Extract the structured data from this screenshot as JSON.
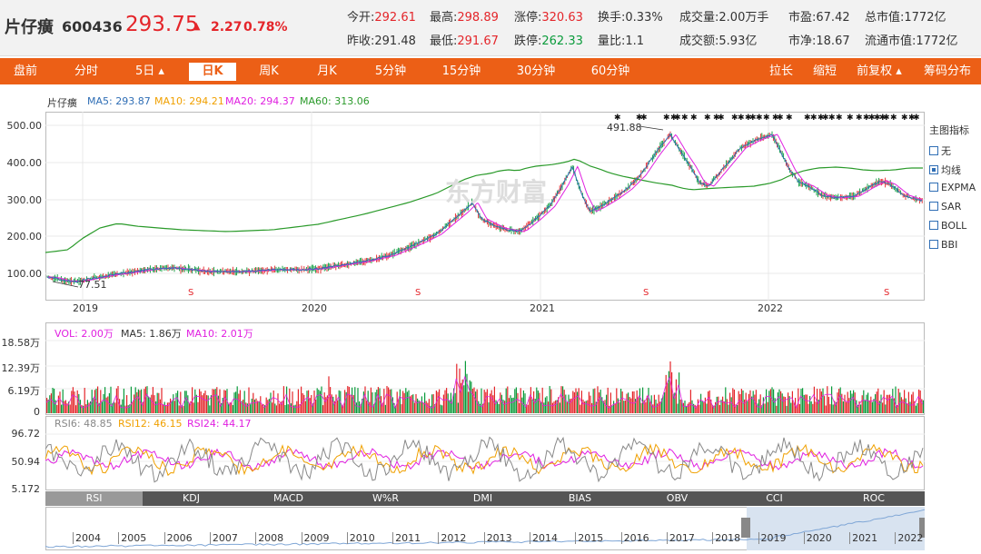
{
  "stock": {
    "name": "片仔癀",
    "code": "600436",
    "price": "293.75",
    "arrow": "▲",
    "change": "2.27",
    "pct": "0.78%"
  },
  "stats": {
    "open_l": "今开:",
    "open": "292.61",
    "high_l": "最高:",
    "high": "298.89",
    "limit_up_l": "涨停:",
    "limit_up": "320.63",
    "turnover_l": "换手:",
    "turnover": "0.33%",
    "vol_l": "成交量:",
    "vol": "2.00万手",
    "pe_l": "市盈:",
    "pe": "67.42",
    "mcap_l": "总市值:",
    "mcap": "1772亿",
    "prev_l": "昨收:",
    "prev": "291.48",
    "low_l": "最低:",
    "low": "291.67",
    "limit_dn_l": "跌停:",
    "limit_dn": "262.33",
    "vratio_l": "量比:",
    "vratio": "1.1",
    "amount_l": "成交额:",
    "amount": "5.93亿",
    "pb_l": "市净:",
    "pb": "18.67",
    "fmcap_l": "流通市值:",
    "fmcap": "1772亿"
  },
  "tabs": [
    "盘前",
    "分时",
    "5日 ▴",
    "日K",
    "周K",
    "月K",
    "5分钟",
    "15分钟",
    "30分钟",
    "60分钟"
  ],
  "active_tab": "日K",
  "tools": [
    "拉长",
    "缩短",
    "前复权 ▴",
    "筹码分布"
  ],
  "ma": {
    "title": "片仔癀",
    "ma5": "MA5: 293.87",
    "ma10": "MA10: 294.21",
    "ma20": "MA20: 294.37",
    "ma60": "MA60: 313.06"
  },
  "price_axis": [
    "500.00",
    "400.00",
    "300.00",
    "200.00",
    "100.00"
  ],
  "year_labels": [
    "2019",
    "2020",
    "2021",
    "2022"
  ],
  "annot": {
    "high": "491.88",
    "low": "77.51"
  },
  "watermark": "东方财富",
  "indicators": {
    "title": "主图指标",
    "items": [
      "无",
      "均线",
      "EXPMA",
      "SAR",
      "BOLL",
      "BBI"
    ],
    "selected": "均线"
  },
  "vol": {
    "vol": "VOL: 2.00万",
    "ma5": "MA5: 1.86万",
    "ma10": "MA10: 2.01万",
    "axis": [
      "18.58万",
      "12.39万",
      "6.19万",
      "0"
    ]
  },
  "rsi": {
    "r6": "RSI6: 48.85",
    "r12": "RSI12: 46.15",
    "r24": "RSI24: 44.17",
    "axis": [
      "96.72",
      "50.94",
      "5.172"
    ]
  },
  "ind_tabs": [
    "RSI",
    "KDJ",
    "MACD",
    "W%R",
    "DMI",
    "BIAS",
    "OBV",
    "CCI",
    "ROC"
  ],
  "nav_years": [
    "2004",
    "2005",
    "2006",
    "2007",
    "2008",
    "2009",
    "2010",
    "2011",
    "2012",
    "2013",
    "2014",
    "2015",
    "2016",
    "2017",
    "2018",
    "2019",
    "2020",
    "2021",
    "2022"
  ],
  "colors": {
    "up": "#e4252a",
    "down": "#0a9b3b",
    "ma5": "#2f6eb5",
    "ma10": "#f0a000",
    "ma20": "#e020e0",
    "ma60": "#2a9a2a",
    "accent": "#ec5f16"
  }
}
